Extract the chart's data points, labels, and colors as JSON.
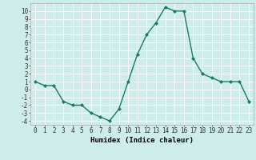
{
  "x": [
    0,
    1,
    2,
    3,
    4,
    5,
    6,
    7,
    8,
    9,
    10,
    11,
    12,
    13,
    14,
    15,
    16,
    17,
    18,
    19,
    20,
    21,
    22,
    23
  ],
  "y": [
    1.0,
    0.5,
    0.5,
    -1.5,
    -2.0,
    -2.0,
    -3.0,
    -3.5,
    -4.0,
    -2.5,
    1.0,
    4.5,
    7.0,
    8.5,
    10.5,
    10.0,
    10.0,
    4.0,
    2.0,
    1.5,
    1.0,
    1.0,
    1.0,
    -1.5
  ],
  "line_color": "#1a7a6a",
  "marker": "D",
  "marker_size": 2,
  "xlabel": "Humidex (Indice chaleur)",
  "xlim": [
    -0.5,
    23.5
  ],
  "ylim": [
    -4.5,
    11.0
  ],
  "yticks": [
    -4,
    -3,
    -2,
    -1,
    0,
    1,
    2,
    3,
    4,
    5,
    6,
    7,
    8,
    9,
    10
  ],
  "xticks": [
    0,
    1,
    2,
    3,
    4,
    5,
    6,
    7,
    8,
    9,
    10,
    11,
    12,
    13,
    14,
    15,
    16,
    17,
    18,
    19,
    20,
    21,
    22,
    23
  ],
  "bg_color": "#ceecea",
  "grid_color": "#ffffff",
  "tick_label_size": 5.5,
  "xlabel_size": 6.5
}
